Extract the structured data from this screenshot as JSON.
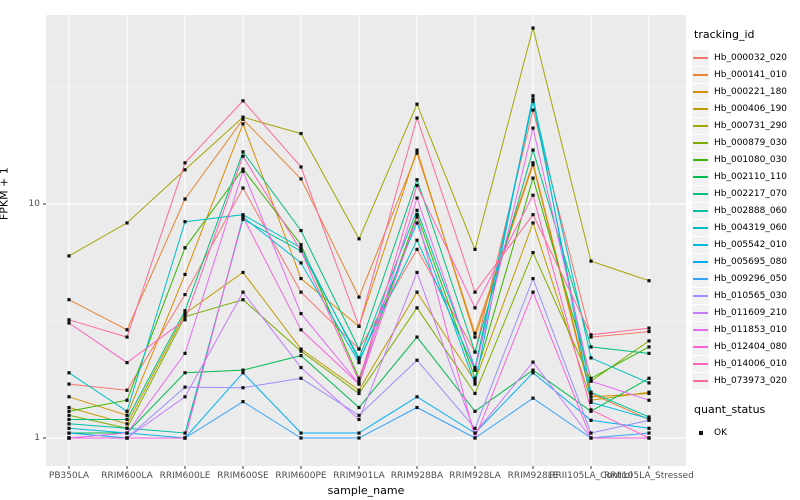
{
  "axes": {
    "x_title": "sample_name",
    "y_title": "FPKM + 1"
  },
  "legend": {
    "tracking_title": "tracking_id",
    "quant_title": "quant_status",
    "quant_items": [
      {
        "label": "OK"
      }
    ]
  },
  "chart_data": {
    "type": "line",
    "title": "",
    "xlabel": "sample_name",
    "ylabel": "FPKM + 1",
    "y_scale": "log10",
    "ylim": [
      0.76,
      64
    ],
    "grid": "on",
    "panel_bg": "#EBEBEB",
    "grid_color": "#FFFFFF",
    "legend_position": "right",
    "point_marker": {
      "shape": "filled-square",
      "color": "#111111",
      "meaning": "quant_status OK"
    },
    "y_ticks": [
      {
        "value": 10,
        "label": "10"
      },
      {
        "value": 1,
        "label": "1"
      }
    ],
    "y_minor_gridlines": [
      31.62,
      3.162
    ],
    "categories": [
      "PB350LA",
      "RRIM600LA",
      "RRIM600LE",
      "RRIM600SE",
      "RRIM600PE",
      "RRIM901LA",
      "RRIM928BA",
      "RRIM928LA",
      "RRIM928LE",
      "RRII105LA_Control",
      "RRII105LA_Stressed"
    ],
    "series": [
      {
        "name": "Hb_000032_020",
        "color": "#F8766D",
        "values": [
          1.7,
          1.6,
          4.1,
          11.7,
          4.2,
          2.4,
          6.4,
          2.33,
          25.2,
          2.7,
          2.85
        ]
      },
      {
        "name": "Hb_000141_010",
        "color": "#EA8331",
        "values": [
          3.9,
          2.9,
          10.5,
          23.0,
          12.8,
          4.0,
          16.5,
          2.8,
          15.0,
          1.55,
          1.2
        ]
      },
      {
        "name": "Hb_000221_180",
        "color": "#D89000",
        "values": [
          1.5,
          1.25,
          5.0,
          22.0,
          4.8,
          3.0,
          17.0,
          2.7,
          14.7,
          1.5,
          1.55
        ]
      },
      {
        "name": "Hb_000406_190",
        "color": "#C09B00",
        "values": [
          1.35,
          1.15,
          3.4,
          5.1,
          2.4,
          1.6,
          4.2,
          1.75,
          8.3,
          1.45,
          1.57
        ]
      },
      {
        "name": "Hb_000731_290",
        "color": "#A3A500",
        "values": [
          6.0,
          8.3,
          14.0,
          23.5,
          20.0,
          7.1,
          26.7,
          6.4,
          56.5,
          5.7,
          4.7
        ]
      },
      {
        "name": "Hb_000879_030",
        "color": "#7CAE00",
        "values": [
          1.25,
          1.1,
          3.3,
          3.9,
          2.35,
          1.55,
          3.6,
          1.55,
          6.2,
          1.75,
          2.6
        ]
      },
      {
        "name": "Hb_001080_030",
        "color": "#39B600",
        "values": [
          1.3,
          1.45,
          6.5,
          14.1,
          6.7,
          1.8,
          9.0,
          1.8,
          12.9,
          1.8,
          2.45
        ]
      },
      {
        "name": "Hb_002110_110",
        "color": "#00BB4E",
        "values": [
          1.05,
          1.05,
          1.9,
          1.95,
          2.25,
          1.35,
          2.7,
          1.3,
          1.95,
          1.3,
          1.8
        ]
      },
      {
        "name": "Hb_002217_070",
        "color": "#00BF7D",
        "values": [
          1.2,
          1.2,
          3.5,
          16.7,
          7.7,
          2.4,
          12.7,
          2.33,
          17.0,
          2.45,
          2.3
        ]
      },
      {
        "name": "Hb_002888_060",
        "color": "#00C1A3",
        "values": [
          1.15,
          1.1,
          1.05,
          8.6,
          6.3,
          2.2,
          9.4,
          2.0,
          27.5,
          1.57,
          1.23
        ]
      },
      {
        "name": "Hb_004319_060",
        "color": "#00BFC4",
        "values": [
          1.9,
          1.3,
          8.4,
          9.0,
          6.5,
          2.15,
          7.0,
          1.95,
          28.0,
          2.2,
          1.72
        ]
      },
      {
        "name": "Hb_005542_010",
        "color": "#00BAE0",
        "values": [
          1.1,
          1.05,
          1.0,
          8.8,
          5.6,
          2.1,
          8.3,
          1.7,
          29.0,
          1.42,
          1.21
        ]
      },
      {
        "name": "Hb_005695_080",
        "color": "#00B0F6",
        "values": [
          1.05,
          1.0,
          1.0,
          1.9,
          1.05,
          1.05,
          1.5,
          1.05,
          1.9,
          1.19,
          1.1
        ]
      },
      {
        "name": "Hb_009296_050",
        "color": "#35A2FF",
        "values": [
          1.0,
          1.0,
          1.0,
          1.43,
          1.0,
          1.0,
          1.35,
          1.0,
          1.48,
          1.0,
          1.05
        ]
      },
      {
        "name": "Hb_010565_030",
        "color": "#9590FF",
        "values": [
          1.0,
          1.0,
          1.65,
          1.64,
          1.8,
          1.25,
          2.15,
          1.1,
          4.8,
          1.05,
          1.19
        ]
      },
      {
        "name": "Hb_011609_210",
        "color": "#C77CFF",
        "values": [
          1.0,
          1.0,
          1.5,
          4.2,
          2.0,
          1.2,
          5.1,
          1.05,
          2.11,
          1.0,
          1.0
        ]
      },
      {
        "name": "Hb_011853_010",
        "color": "#E76BF3",
        "values": [
          1.0,
          1.05,
          2.3,
          13.8,
          3.4,
          1.7,
          10.6,
          1.95,
          21.1,
          1.75,
          1.45
        ]
      },
      {
        "name": "Hb_012404_080",
        "color": "#FA62DB",
        "values": [
          1.0,
          1.0,
          1.0,
          8.8,
          2.9,
          1.7,
          8.8,
          1.0,
          4.2,
          1.0,
          1.0
        ]
      },
      {
        "name": "Hb_014006_010",
        "color": "#FF62BC",
        "values": [
          3.1,
          2.1,
          3.2,
          16.0,
          6.3,
          1.75,
          12.0,
          3.6,
          10.9,
          1.32,
          1.0
        ]
      },
      {
        "name": "Hb_073973_020",
        "color": "#FF6A98",
        "values": [
          3.2,
          2.7,
          15.0,
          27.6,
          14.4,
          3.0,
          23.3,
          4.2,
          9.0,
          2.76,
          2.95
        ]
      }
    ]
  }
}
